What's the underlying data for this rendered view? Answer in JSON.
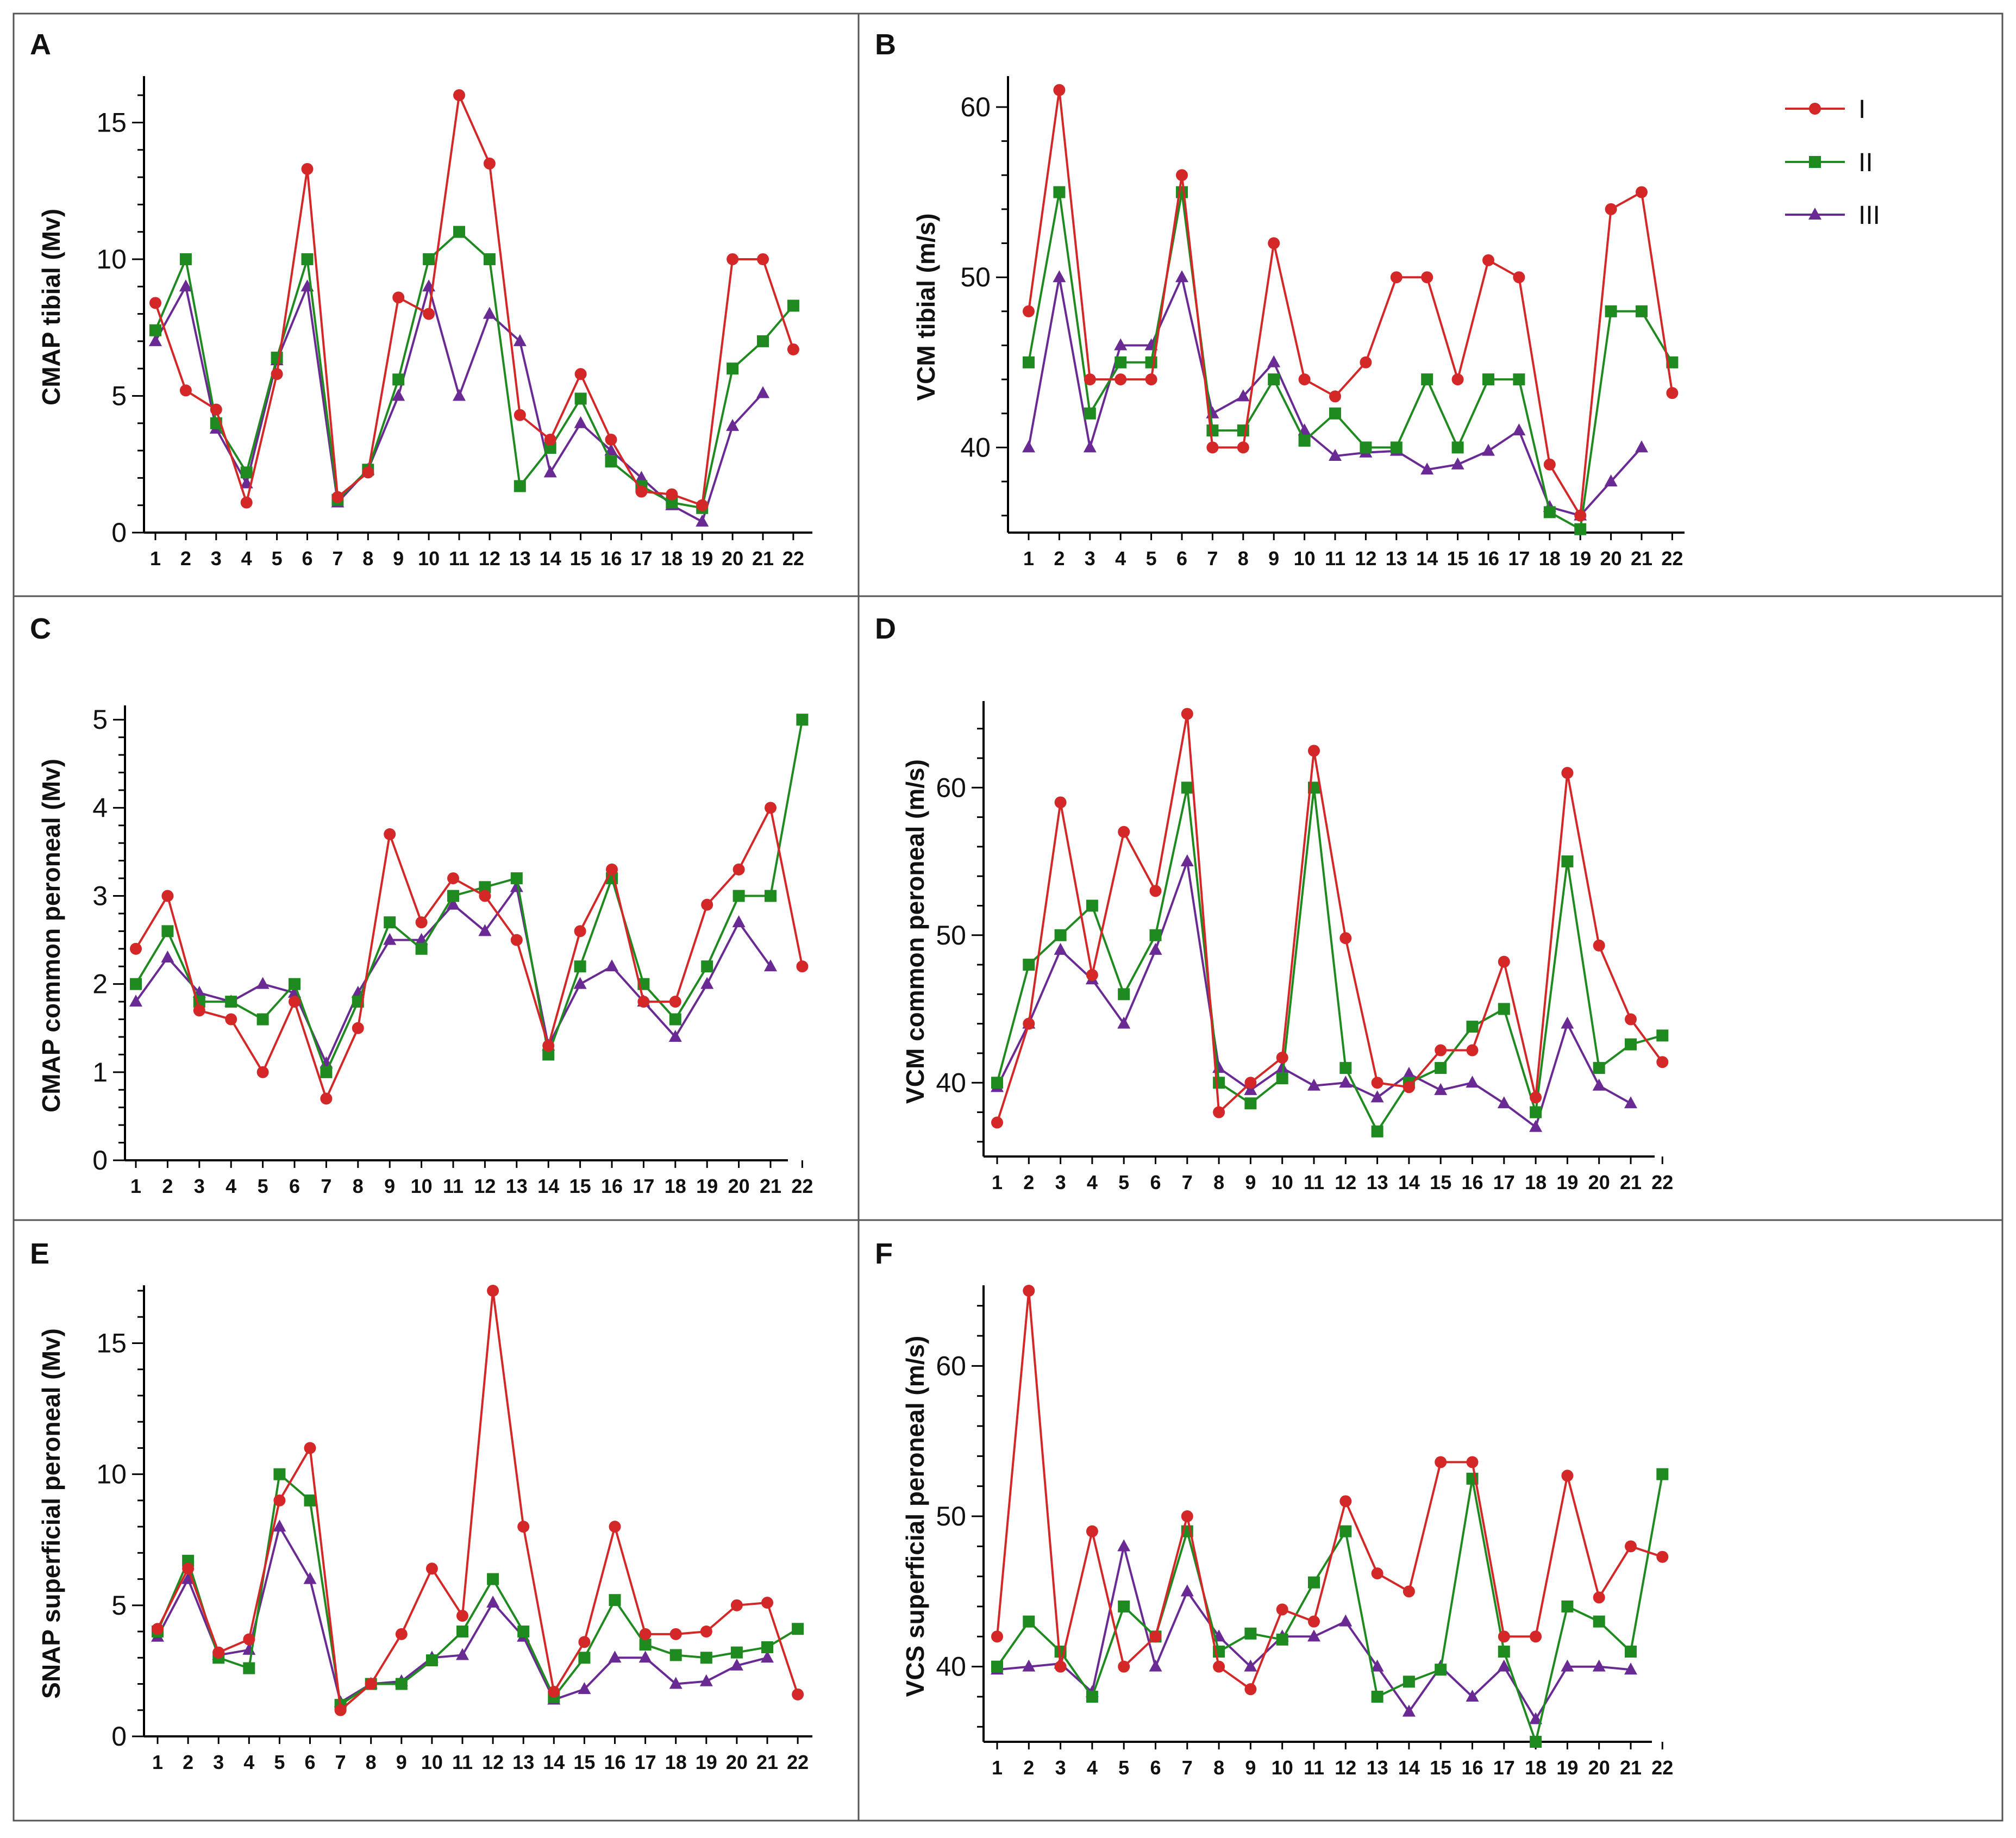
{
  "legend": [
    {
      "key": "I",
      "label": "I",
      "color": "#d42828",
      "marker": "circle"
    },
    {
      "key": "II",
      "label": "II",
      "color": "#1f8a1f",
      "marker": "square"
    },
    {
      "key": "III",
      "label": "III",
      "color": "#6a2a94",
      "marker": "triangle"
    }
  ],
  "chart_data": [
    {
      "panel": "A",
      "type": "line",
      "ylabel": "CMAP tibial (Mv)",
      "xlabel": "",
      "categories": [
        1,
        2,
        3,
        4,
        5,
        6,
        7,
        8,
        9,
        10,
        11,
        12,
        13,
        14,
        15,
        16,
        17,
        18,
        19,
        20,
        21,
        22
      ],
      "ylim": [
        0,
        16.5
      ],
      "yticks": [
        0,
        5,
        10,
        15
      ],
      "series": [
        {
          "name": "I",
          "values": [
            8.4,
            5.2,
            4.5,
            1.1,
            5.8,
            13.3,
            1.3,
            2.2,
            8.6,
            8.0,
            16.0,
            13.5,
            4.3,
            3.4,
            5.8,
            3.4,
            1.5,
            1.4,
            1.0,
            10.0,
            10.0,
            6.7
          ]
        },
        {
          "name": "II",
          "values": [
            7.4,
            10.0,
            4.0,
            2.2,
            6.4,
            10.0,
            1.2,
            2.3,
            5.6,
            10.0,
            11.0,
            10.0,
            1.7,
            3.1,
            4.9,
            2.6,
            1.7,
            1.1,
            0.9,
            6.0,
            7.0,
            8.3
          ]
        },
        {
          "name": "III",
          "values": [
            7.0,
            9.0,
            3.8,
            1.8,
            6.3,
            9.0,
            1.1,
            2.3,
            5.0,
            9.0,
            5.0,
            8.0,
            7.0,
            2.2,
            4.0,
            3.0,
            2.0,
            1.0,
            0.4,
            3.9,
            5.1,
            null
          ]
        }
      ]
    },
    {
      "panel": "B",
      "type": "line",
      "ylabel": "VCM tibial (m/s)",
      "xlabel": "",
      "categories": [
        1,
        2,
        3,
        4,
        5,
        6,
        7,
        8,
        9,
        10,
        11,
        12,
        13,
        14,
        15,
        16,
        17,
        18,
        19,
        20,
        21,
        22
      ],
      "ylim": [
        35,
        61.5
      ],
      "yticks": [
        40,
        50,
        60
      ],
      "series": [
        {
          "name": "I",
          "values": [
            48,
            61,
            44,
            44,
            44,
            56,
            40,
            40,
            52,
            44,
            43,
            45,
            50,
            50,
            44,
            51,
            50,
            39,
            36,
            54,
            55,
            43.2
          ]
        },
        {
          "name": "II",
          "values": [
            45,
            55,
            42,
            45,
            45,
            55,
            41,
            41,
            44,
            40.4,
            42,
            40,
            40,
            44,
            40,
            44,
            44,
            36.2,
            35.2,
            48,
            48,
            45
          ]
        },
        {
          "name": "III",
          "values": [
            40,
            50,
            40,
            46,
            46,
            50,
            42,
            43,
            45,
            41,
            39.5,
            39.7,
            39.8,
            38.7,
            39,
            39.8,
            41,
            36.5,
            36,
            38,
            40,
            null
          ]
        }
      ]
    },
    {
      "panel": "C",
      "type": "line",
      "ylabel": "CMAP common peroneal (Mv)",
      "xlabel": "",
      "categories": [
        1,
        2,
        3,
        4,
        5,
        6,
        7,
        8,
        9,
        10,
        11,
        12,
        13,
        14,
        15,
        16,
        17,
        18,
        19,
        20,
        21,
        22
      ],
      "ylim": [
        0,
        5.1
      ],
      "yticks": [
        0,
        1,
        2,
        3,
        4,
        5
      ],
      "series": [
        {
          "name": "I",
          "values": [
            2.4,
            3.0,
            1.7,
            1.6,
            1.0,
            1.8,
            0.7,
            1.5,
            3.7,
            2.7,
            3.2,
            3.0,
            2.5,
            1.3,
            2.6,
            3.3,
            1.8,
            1.8,
            2.9,
            3.3,
            4.0,
            2.2
          ]
        },
        {
          "name": "II",
          "values": [
            2.0,
            2.6,
            1.8,
            1.8,
            1.6,
            2.0,
            1.0,
            1.8,
            2.7,
            2.4,
            3.0,
            3.1,
            3.2,
            1.2,
            2.2,
            3.2,
            2.0,
            1.6,
            2.2,
            3.0,
            3.0,
            5.0
          ]
        },
        {
          "name": "III",
          "values": [
            1.8,
            2.3,
            1.9,
            1.8,
            2.0,
            1.9,
            1.1,
            1.9,
            2.5,
            2.5,
            2.9,
            2.6,
            3.1,
            1.3,
            2.0,
            2.2,
            1.8,
            1.4,
            2.0,
            2.7,
            2.2,
            null
          ]
        }
      ]
    },
    {
      "panel": "D",
      "type": "line",
      "ylabel": "VCM common peroneal (m/s)",
      "xlabel": "",
      "categories": [
        1,
        2,
        3,
        4,
        5,
        6,
        7,
        8,
        9,
        10,
        11,
        12,
        13,
        14,
        15,
        16,
        17,
        18,
        19,
        20,
        21,
        22
      ],
      "ylim": [
        35,
        65.5
      ],
      "yticks": [
        40,
        50,
        60
      ],
      "series": [
        {
          "name": "I",
          "values": [
            37.3,
            44,
            59,
            47.3,
            57,
            53,
            65,
            38,
            40,
            41.7,
            62.5,
            49.8,
            40,
            39.7,
            42.2,
            42.2,
            48.2,
            39,
            61,
            49.3,
            44.3,
            41.4
          ]
        },
        {
          "name": "II",
          "values": [
            40,
            48,
            50,
            52,
            46,
            50,
            60,
            40,
            38.6,
            40.3,
            60,
            41,
            36.7,
            40,
            41,
            43.8,
            45,
            38,
            55,
            41,
            42.6,
            43.2
          ]
        },
        {
          "name": "III",
          "values": [
            39.7,
            44,
            49,
            47,
            44,
            49,
            55,
            41,
            39.5,
            41,
            39.8,
            40,
            39,
            40.6,
            39.5,
            40,
            38.6,
            37,
            44,
            39.8,
            38.6,
            null
          ]
        }
      ]
    },
    {
      "panel": "E",
      "type": "line",
      "ylabel": "SNAP superficial peroneal (Mv)",
      "xlabel": "",
      "categories": [
        1,
        2,
        3,
        4,
        5,
        6,
        7,
        8,
        9,
        10,
        11,
        12,
        13,
        14,
        15,
        16,
        17,
        18,
        19,
        20,
        21,
        22
      ],
      "ylim": [
        0,
        17.0
      ],
      "yticks": [
        0,
        5,
        10,
        15
      ],
      "series": [
        {
          "name": "I",
          "values": [
            4.1,
            6.4,
            3.2,
            3.7,
            9.0,
            11.0,
            1.0,
            2.0,
            3.9,
            6.4,
            4.6,
            17.0,
            8.0,
            1.7,
            3.6,
            8.0,
            3.9,
            3.9,
            4.0,
            5.0,
            5.1,
            1.6
          ]
        },
        {
          "name": "II",
          "values": [
            4.0,
            6.7,
            3.0,
            2.6,
            10.0,
            9.0,
            1.2,
            2.0,
            2.0,
            2.9,
            4.0,
            6.0,
            4.0,
            1.5,
            3.0,
            5.2,
            3.5,
            3.1,
            3.0,
            3.2,
            3.4,
            4.1
          ]
        },
        {
          "name": "III",
          "values": [
            3.8,
            6.0,
            3.1,
            3.3,
            8.0,
            6.0,
            1.3,
            2.0,
            2.1,
            3.0,
            3.1,
            5.1,
            3.8,
            1.4,
            1.8,
            3.0,
            3.0,
            2.0,
            2.1,
            2.7,
            3.0,
            null
          ]
        }
      ]
    },
    {
      "panel": "F",
      "type": "line",
      "ylabel": "VCS superficial peroneal (m/s)",
      "xlabel": "",
      "categories": [
        1,
        2,
        3,
        4,
        5,
        6,
        7,
        8,
        9,
        10,
        11,
        12,
        13,
        14,
        15,
        16,
        17,
        18,
        19,
        20,
        21,
        22
      ],
      "ylim": [
        35,
        65.0
      ],
      "yticks": [
        40,
        50,
        60
      ],
      "series": [
        {
          "name": "I",
          "values": [
            42,
            65,
            40,
            49,
            40,
            42,
            50,
            40,
            38.5,
            43.8,
            43,
            51,
            46.2,
            45,
            53.6,
            53.6,
            42,
            42,
            52.7,
            44.6,
            48,
            47.3
          ]
        },
        {
          "name": "II",
          "values": [
            40,
            43,
            41,
            38,
            44,
            42,
            49,
            41,
            42.2,
            41.8,
            45.6,
            49,
            38,
            39,
            39.8,
            52.5,
            41,
            35,
            44,
            43,
            41,
            52.8
          ]
        },
        {
          "name": "III",
          "values": [
            39.8,
            40,
            40.2,
            38.3,
            48,
            40,
            45,
            42,
            40,
            42,
            42,
            43,
            40,
            37,
            40,
            38,
            40,
            36.5,
            40,
            40,
            39.8,
            null
          ]
        }
      ]
    }
  ]
}
